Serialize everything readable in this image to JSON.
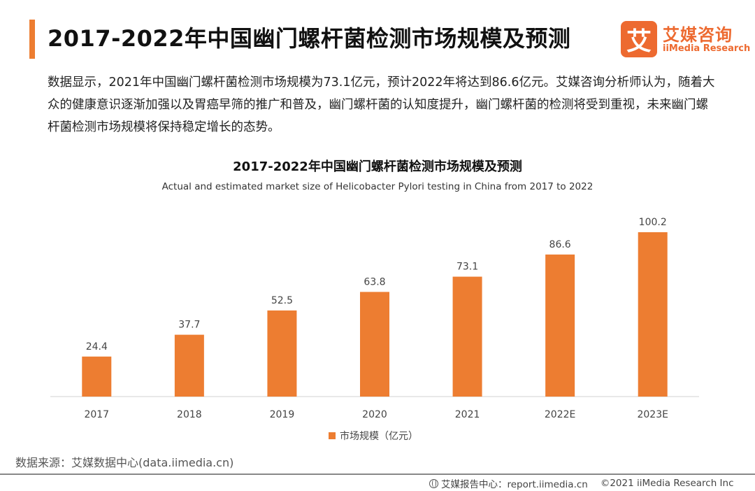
{
  "header": {
    "title": "2017-2022年中国幽门螺杆菌检测市场规模及预测",
    "accent_color": "#ed7d31"
  },
  "logo": {
    "mark": "艾",
    "name_cn": "艾媒咨询",
    "name_en": "iiMedia Research",
    "color": "#ed6a30"
  },
  "summary": "数据显示，2021年中国幽门螺杆菌检测市场规模为73.1亿元，预计2022年将达到86.6亿元。艾媒咨询分析师认为，随着大众的健康意识逐渐加强以及胃癌早筛的推广和普及，幽门螺杆菌的认知度提升，幽门螺杆菌的检测将受到重视，未来幽门螺杆菌检测市场规模将保持稳定增长的态势。",
  "chart_data": {
    "type": "bar",
    "title": "2017-2022年中国幽门螺杆菌检测市场规模及预测",
    "subtitle": "Actual and estimated market size of Helicobacter Pylori testing in China from 2017 to 2022",
    "categories": [
      "2017",
      "2018",
      "2019",
      "2020",
      "2021",
      "2022E",
      "2023E"
    ],
    "series": [
      {
        "name": "市场规模（亿元）",
        "values": [
          24.4,
          37.7,
          52.5,
          63.8,
          73.1,
          86.6,
          100.2
        ],
        "color": "#ed7d31"
      }
    ],
    "ylim": [
      0,
      100.2
    ],
    "grid": false,
    "legend_position": "bottom",
    "data_labels": true
  },
  "source": "数据来源：艾媒数据中心(data.iimedia.cn)",
  "footer": {
    "icon": "globe-icon",
    "report": "艾媒报告中心：report.iimedia.cn",
    "copyright": "©2021  iiMedia Research  Inc"
  }
}
